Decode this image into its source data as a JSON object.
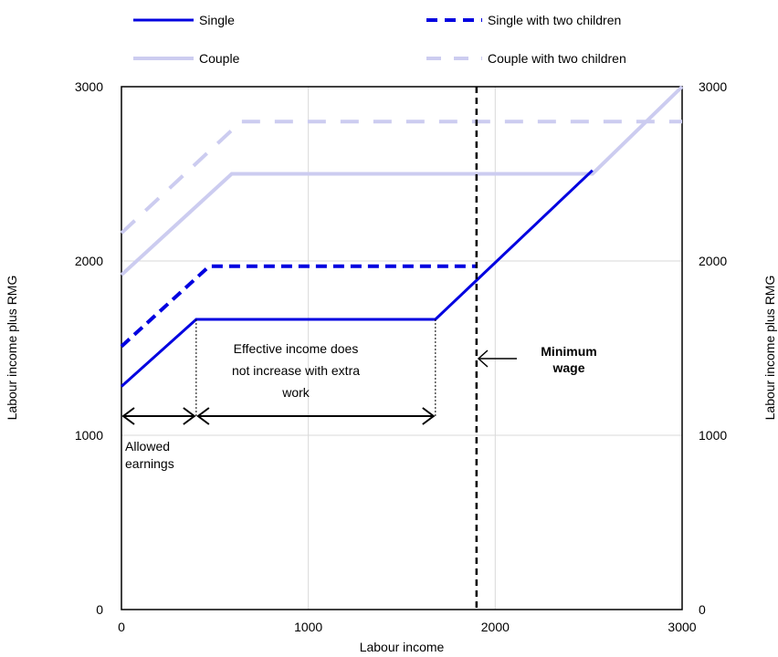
{
  "header_fragment": ", ... ... ... ... ... ... (",
  "chart_data": {
    "type": "line",
    "title": "",
    "xlabel": "Labour income",
    "ylabel": "Labour income plus RMG",
    "ylabel_right": "Labour income plus RMG",
    "xlim": [
      0,
      3000
    ],
    "ylim": [
      0,
      3000
    ],
    "xticks": [
      0,
      1000,
      2000,
      3000
    ],
    "yticks": [
      0,
      1000,
      2000,
      3000
    ],
    "grid": true,
    "legend_placement": "top",
    "series": [
      {
        "name": "Single",
        "color": "#0000e0",
        "style": "solid",
        "x": [
          0,
          400,
          1680,
          2520
        ],
        "y": [
          1280,
          1665,
          1665,
          2520
        ]
      },
      {
        "name": "Single with two children",
        "color": "#0000e0",
        "style": "dashed",
        "x": [
          0,
          470,
          1900
        ],
        "y": [
          1510,
          1970,
          1970
        ]
      },
      {
        "name": "Couple",
        "color": "#ccccf0",
        "style": "solid",
        "x": [
          0,
          590,
          2520,
          3000
        ],
        "y": [
          1920,
          2500,
          2500,
          3000
        ]
      },
      {
        "name": "Couple with two children",
        "color": "#ccccf0",
        "style": "dashed",
        "x": [
          0,
          640,
          3000
        ],
        "y": [
          2160,
          2800,
          2800
        ]
      }
    ],
    "minimum_wage": {
      "x": 1900,
      "label_line1": "Minimum",
      "label_line2": "wage"
    },
    "annotations": {
      "allowed_earnings": {
        "x_start": 0,
        "x_end": 400,
        "y": 1110,
        "line1": "Allowed",
        "line2": "earnings"
      },
      "effective_income": {
        "x_start": 400,
        "x_end": 1680,
        "y": 1110,
        "line1": "Effective income does",
        "line2": "not increase with extra",
        "line3": "work"
      }
    }
  }
}
